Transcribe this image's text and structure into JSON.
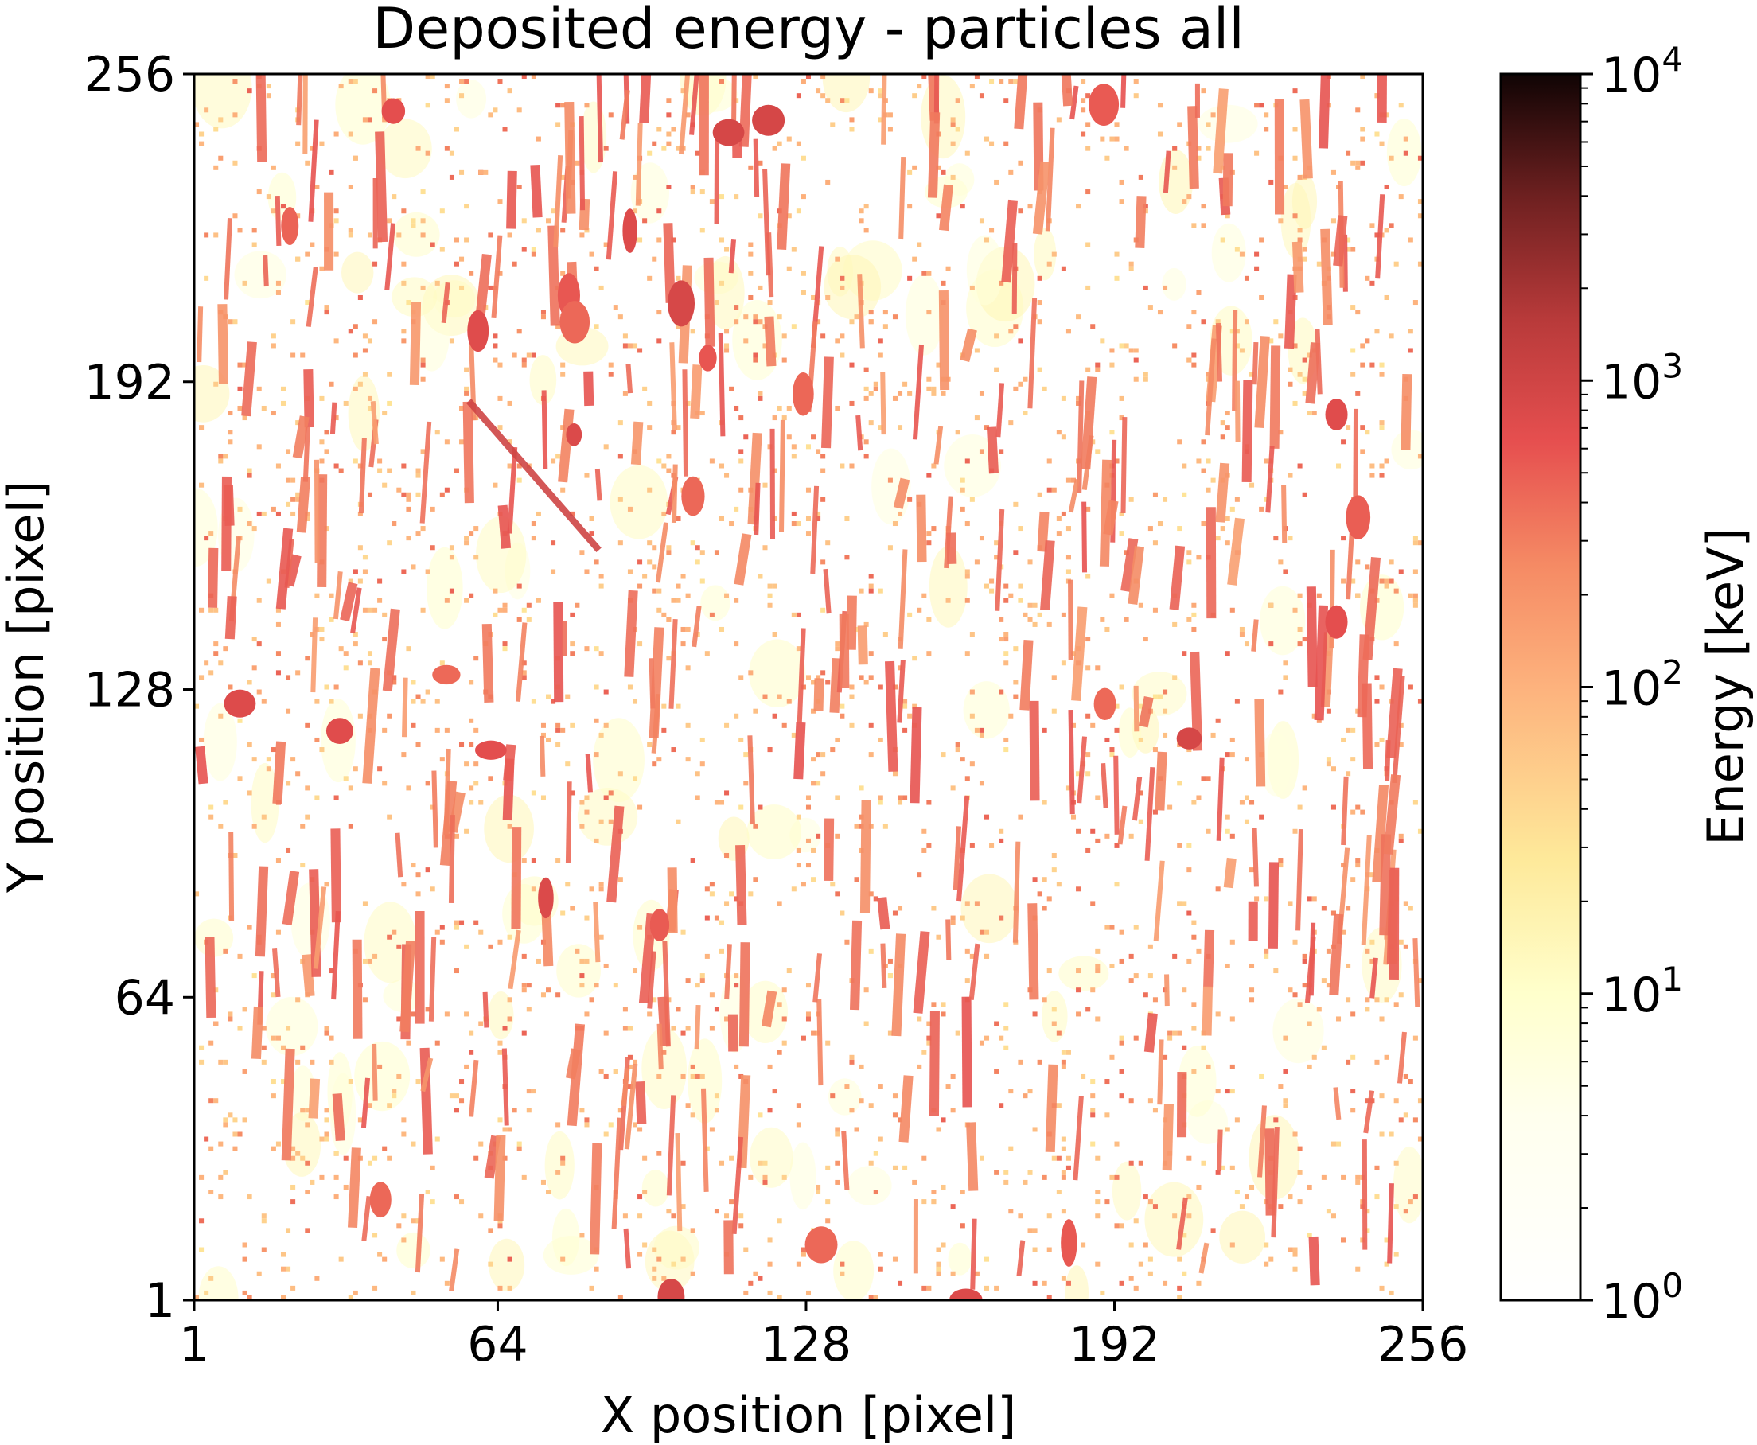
{
  "chart_data": {
    "type": "heatmap",
    "title": "Deposited energy - particles all",
    "xlabel": "X position [pixel]",
    "ylabel": "Y position [pixel]",
    "xlim": [
      1,
      256
    ],
    "ylim": [
      1,
      256
    ],
    "x_ticks": [
      1,
      64,
      128,
      192,
      256
    ],
    "y_ticks": [
      1,
      64,
      128,
      192,
      256
    ],
    "x_tick_labels": [
      "1",
      "64",
      "128",
      "192",
      "256"
    ],
    "y_tick_labels": [
      "1",
      "64",
      "128",
      "192",
      "256"
    ],
    "colorbar": {
      "label": "Energy [keV]",
      "scale": "log",
      "range": [
        1,
        10000
      ],
      "ticks": [
        1,
        10,
        100,
        1000,
        10000
      ],
      "tick_labels": [
        {
          "base": "10",
          "exp": "0"
        },
        {
          "base": "10",
          "exp": "1"
        },
        {
          "base": "10",
          "exp": "2"
        },
        {
          "base": "10",
          "exp": "3"
        },
        {
          "base": "10",
          "exp": "4"
        }
      ],
      "colormap": "YlOrRd-like (white → yellow → orange → red → dark brown)",
      "colormap_stops": [
        "#ffffff",
        "#ffffcc",
        "#ffeda0",
        "#fdb27d",
        "#f07a5c",
        "#e04a4a",
        "#b83a3a",
        "#7a2222",
        "#3a0c0c",
        "#100404"
      ]
    },
    "background_value_keV": 1,
    "notable_features": [
      {
        "kind": "diagonal_track",
        "x_start": 58,
        "y_start": 188,
        "x_end": 85,
        "y_end": 157,
        "energy_keV": 1000
      }
    ]
  }
}
